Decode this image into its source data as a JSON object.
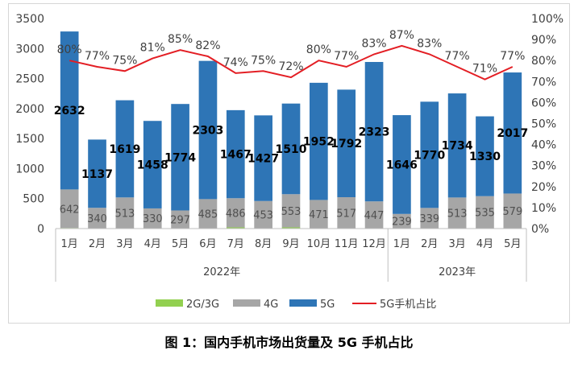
{
  "caption": "图 1：国内手机市场出货量及 5G 手机占比",
  "chart_data": {
    "type": "bar",
    "stacked": true,
    "categories": [
      "1月",
      "2月",
      "3月",
      "4月",
      "5月",
      "6月",
      "7月",
      "8月",
      "9月",
      "10月",
      "11月",
      "12月",
      "1月",
      "2月",
      "3月",
      "4月",
      "5月"
    ],
    "year_groups": [
      {
        "label": "2022年",
        "count": 12
      },
      {
        "label": "2023年",
        "count": 5
      }
    ],
    "series": [
      {
        "name": "2G/3G",
        "color": "#92d050",
        "values": [
          10,
          6,
          6,
          6,
          5,
          6,
          20,
          6,
          20,
          6,
          6,
          6,
          5,
          5,
          5,
          5,
          5
        ]
      },
      {
        "name": "4G",
        "color": "#a6a6a6",
        "values": [
          642,
          340,
          513,
          330,
          297,
          485,
          486,
          453,
          553,
          471,
          517,
          447,
          239,
          339,
          513,
          535,
          579
        ]
      },
      {
        "name": "5G",
        "color": "#2e75b6",
        "values": [
          2632,
          1137,
          1619,
          1458,
          1774,
          2303,
          1467,
          1427,
          1510,
          1952,
          1792,
          2323,
          1646,
          1770,
          1734,
          1330,
          2017
        ]
      }
    ],
    "line_series": {
      "name": "5G手机占比",
      "color": "#e31e24",
      "values": [
        80,
        77,
        75,
        81,
        85,
        82,
        74,
        75,
        72,
        80,
        77,
        83,
        87,
        83,
        77,
        71,
        77
      ],
      "labels": [
        "80%",
        "77%",
        "75%",
        "81%",
        "85%",
        "82%",
        "74%",
        "75%",
        "72%",
        "80%",
        "77%",
        "83%",
        "87%",
        "83%",
        "77%",
        "71%",
        "77%"
      ]
    },
    "y_left": {
      "min": 0,
      "max": 3500,
      "ticks": [
        "0",
        "500",
        "1000",
        "1500",
        "2000",
        "2500",
        "3000",
        "3500"
      ]
    },
    "y_right": {
      "min": 0,
      "max": 100,
      "ticks": [
        "0%",
        "10%",
        "20%",
        "30%",
        "40%",
        "50%",
        "60%",
        "70%",
        "80%",
        "90%",
        "100%"
      ]
    },
    "legend": {
      "position": "bottom",
      "items": [
        "2G/3G",
        "4G",
        "5G",
        "5G手机占比"
      ]
    },
    "grid": false
  }
}
